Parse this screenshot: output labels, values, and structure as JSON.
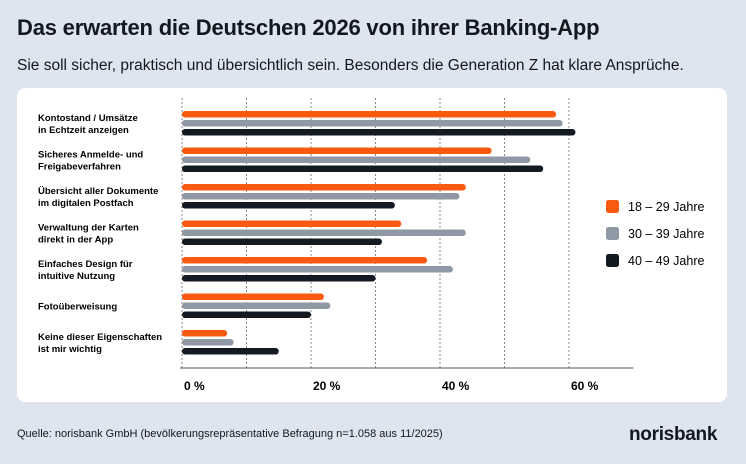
{
  "title": "Das erwarten die Deutschen 2026 von ihrer Banking-App",
  "subtitle": "Sie soll sicher, praktisch und übersichtlich sein. Besonders die Generation Z hat klare Ansprüche.",
  "source": "Quelle: norisbank GmbH (bevölkerungsrepräsentative Befragung n=1.058 aus 11/2025)",
  "logo": "norisbank",
  "chart_data": {
    "type": "bar",
    "orientation": "horizontal",
    "categories": [
      [
        "Kontostand / Umsätze",
        "in Echtzeit anzeigen"
      ],
      [
        "Sicheres Anmelde- und",
        "Freigabeverfahren"
      ],
      [
        "Übersicht aller Dokumente",
        "im digitalen Postfach"
      ],
      [
        "Verwaltung der Karten",
        "direkt in der App"
      ],
      [
        "Einfaches Design für",
        "intuitive Nutzung"
      ],
      [
        "Fotoüberweisung"
      ],
      [
        "Keine dieser Eigenschaften",
        "ist mir wichtig"
      ]
    ],
    "series": [
      {
        "name": "18 – 29 Jahre",
        "color": "#fa5a0f",
        "values": [
          58,
          48,
          44,
          34,
          38,
          22,
          7
        ]
      },
      {
        "name": "30 – 39 Jahre",
        "color": "#8f98a5",
        "values": [
          59,
          54,
          43,
          44,
          42,
          23,
          8
        ]
      },
      {
        "name": "40 – 49 Jahre",
        "color": "#131a22",
        "values": [
          61,
          56,
          33,
          31,
          30,
          20,
          15
        ]
      }
    ],
    "xlim": [
      0,
      70
    ],
    "ticks": [
      "0 %",
      "20 %",
      "40 %",
      "60 %"
    ],
    "tick_values": [
      0,
      20,
      40,
      60
    ],
    "grid": true,
    "legend": "right"
  }
}
